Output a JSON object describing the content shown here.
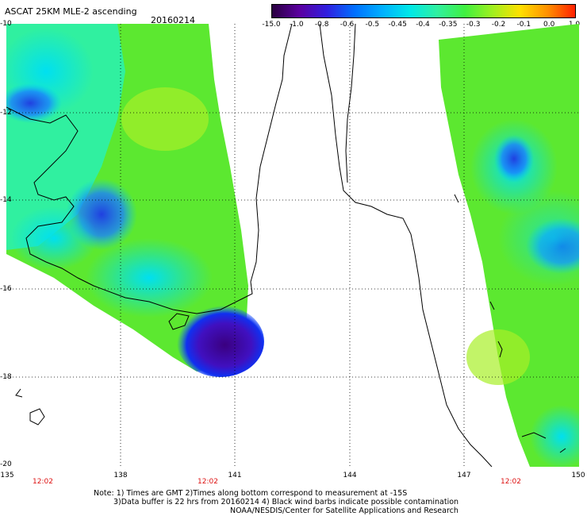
{
  "header": {
    "title": "ASCAT 25KM MLE-2 ascending",
    "date": "20160214"
  },
  "colorbar": {
    "labels": [
      "-15.0",
      "-1.0",
      "-0.8",
      "-0.6",
      "-0.5",
      "-0.45",
      "-0.4",
      "-0.35",
      "-0.3",
      "-0.2",
      "-0.1",
      "0.0",
      "1.0"
    ],
    "colors": [
      "#2a0040",
      "#5a00a0",
      "#3020e0",
      "#0070ff",
      "#00b0ff",
      "#00e8e8",
      "#30f0a0",
      "#40f040",
      "#a0f020",
      "#ffe000",
      "#ff9000",
      "#ff2000"
    ]
  },
  "axes": {
    "lat_labels": [
      "-10",
      "-12",
      "-14",
      "-16",
      "-18",
      "-20"
    ],
    "lon_labels": [
      "135",
      "138",
      "141",
      "144",
      "147",
      "150"
    ],
    "time_labels": [
      "12:02",
      "12:02",
      "12:02"
    ]
  },
  "notes": {
    "line1": "Note: 1) Times are GMT 2)Times along bottom correspond to measurement at -15S",
    "line2": "3)Data buffer is 22 hrs from 20160214 4) Black wind barbs indicate possible contamination",
    "line3": "NOAA/NESDIS/Center for Satellite Applications and Research"
  }
}
